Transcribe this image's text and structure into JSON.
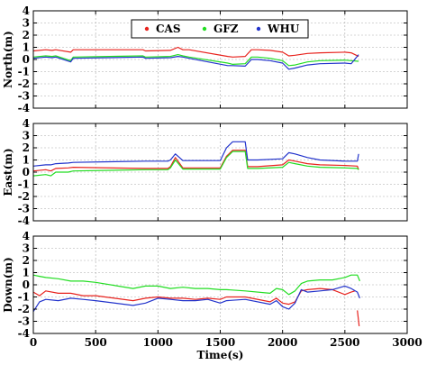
{
  "chart_data": [
    {
      "type": "line",
      "ylabel": "North(m)",
      "xlim": [
        0,
        3000
      ],
      "ylim": [
        -4,
        4
      ],
      "grid": true,
      "legend": {
        "placement": "top-center",
        "entries": [
          "CAS",
          "GFZ",
          "WHU"
        ]
      },
      "series": [
        {
          "name": "CAS",
          "color": "#e8231e",
          "x": [
            0,
            100,
            150,
            180,
            300,
            320,
            880,
            900,
            1100,
            1160,
            1200,
            1250,
            1560,
            1600,
            1700,
            1750,
            1800,
            1900,
            2000,
            2050,
            2100,
            2200,
            2300,
            2500,
            2550,
            2610
          ],
          "y": [
            0.7,
            0.8,
            0.75,
            0.8,
            0.6,
            0.8,
            0.8,
            0.7,
            0.75,
            1.0,
            0.8,
            0.8,
            0.25,
            0.2,
            0.25,
            0.8,
            0.8,
            0.75,
            0.6,
            0.3,
            0.35,
            0.5,
            0.55,
            0.6,
            0.55,
            0.25
          ]
        },
        {
          "name": "GFZ",
          "color": "#22dd22",
          "x": [
            0,
            100,
            150,
            180,
            300,
            320,
            880,
            900,
            1100,
            1160,
            1200,
            1250,
            1560,
            1600,
            1700,
            1750,
            1800,
            1900,
            2000,
            2050,
            2100,
            2200,
            2300,
            2500,
            2550,
            2610
          ],
          "y": [
            0.2,
            0.3,
            0.25,
            0.3,
            -0.1,
            0.2,
            0.3,
            0.2,
            0.25,
            0.4,
            0.3,
            0.2,
            -0.3,
            -0.4,
            -0.35,
            0.2,
            0.2,
            0.1,
            -0.1,
            -0.5,
            -0.45,
            -0.2,
            -0.1,
            -0.05,
            -0.1,
            -0.15
          ]
        },
        {
          "name": "WHU",
          "color": "#2233cc",
          "x": [
            0,
            100,
            150,
            180,
            300,
            320,
            880,
            900,
            1100,
            1160,
            1200,
            1250,
            1560,
            1600,
            1700,
            1750,
            1800,
            1900,
            2000,
            2050,
            2100,
            2200,
            2300,
            2500,
            2550,
            2610
          ],
          "y": [
            0.1,
            0.2,
            0.15,
            0.2,
            -0.2,
            0.1,
            0.2,
            0.1,
            0.15,
            0.25,
            0.2,
            0.1,
            -0.5,
            -0.5,
            -0.55,
            0.0,
            0.0,
            -0.1,
            -0.3,
            -0.8,
            -0.7,
            -0.45,
            -0.35,
            -0.3,
            -0.35,
            0.4
          ]
        }
      ]
    },
    {
      "type": "line",
      "ylabel": "East(m)",
      "xlim": [
        0,
        3000
      ],
      "ylim": [
        -4,
        4
      ],
      "grid": true,
      "series": [
        {
          "name": "CAS",
          "color": "#e8231e",
          "x": [
            0,
            100,
            140,
            180,
            280,
            320,
            900,
            1080,
            1100,
            1140,
            1200,
            1500,
            1550,
            1600,
            1700,
            1720,
            1800,
            2000,
            2050,
            2100,
            2200,
            2300,
            2500,
            2600,
            2610
          ],
          "y": [
            0.1,
            0.2,
            0.1,
            0.3,
            0.35,
            0.4,
            0.3,
            0.3,
            0.45,
            1.2,
            0.35,
            0.35,
            1.3,
            1.8,
            1.8,
            0.45,
            0.45,
            0.6,
            1.0,
            0.9,
            0.7,
            0.6,
            0.55,
            0.5,
            0.2
          ]
        },
        {
          "name": "GFZ",
          "color": "#22dd22",
          "x": [
            0,
            100,
            140,
            180,
            280,
            320,
            900,
            1080,
            1100,
            1140,
            1200,
            1500,
            1550,
            1600,
            1700,
            1720,
            1800,
            2000,
            2050,
            2100,
            2200,
            2300,
            2500,
            2600,
            2610
          ],
          "y": [
            -0.3,
            -0.2,
            -0.3,
            0.0,
            0.0,
            0.1,
            0.2,
            0.2,
            0.35,
            1.0,
            0.25,
            0.25,
            1.2,
            1.7,
            1.7,
            0.3,
            0.3,
            0.4,
            0.8,
            0.7,
            0.5,
            0.4,
            0.35,
            0.3,
            0.2
          ]
        },
        {
          "name": "WHU",
          "color": "#2233cc",
          "x": [
            0,
            100,
            140,
            180,
            280,
            320,
            900,
            1080,
            1100,
            1140,
            1200,
            1500,
            1550,
            1600,
            1700,
            1720,
            1800,
            2000,
            2050,
            2100,
            2200,
            2300,
            2500,
            2600,
            2610
          ],
          "y": [
            0.5,
            0.6,
            0.6,
            0.7,
            0.75,
            0.8,
            0.9,
            0.9,
            1.0,
            1.5,
            0.95,
            0.95,
            2.0,
            2.5,
            2.5,
            1.0,
            1.0,
            1.1,
            1.6,
            1.5,
            1.2,
            1.0,
            0.9,
            0.9,
            1.5
          ]
        }
      ]
    },
    {
      "type": "line",
      "ylabel": "Down(m)",
      "xlabel": "Time(s)",
      "xlim": [
        0,
        3000
      ],
      "ylim": [
        -4,
        4
      ],
      "grid": true,
      "series": [
        {
          "name": "CAS",
          "color": "#e8231e",
          "x": [
            0,
            50,
            100,
            200,
            300,
            400,
            500,
            800,
            900,
            1000,
            1100,
            1200,
            1300,
            1400,
            1500,
            1550,
            1700,
            1900,
            1950,
            2000,
            2050,
            2100,
            2150,
            2200,
            2300,
            2400,
            2500,
            2550,
            2580
          ],
          "y": [
            -0.6,
            -0.9,
            -0.5,
            -0.7,
            -0.7,
            -0.9,
            -0.9,
            -1.3,
            -1.1,
            -1.0,
            -1.1,
            -1.1,
            -1.2,
            -1.1,
            -1.2,
            -1.0,
            -1.0,
            -1.4,
            -1.1,
            -1.5,
            -1.6,
            -1.4,
            -0.5,
            -0.4,
            -0.3,
            -0.4,
            -0.8,
            -0.6,
            -0.5
          ]
        },
        {
          "name": "GFZ",
          "color": "#22dd22",
          "x": [
            0,
            50,
            100,
            200,
            300,
            400,
            500,
            800,
            900,
            1000,
            1100,
            1200,
            1300,
            1400,
            1500,
            1550,
            1700,
            1900,
            1950,
            2000,
            2050,
            2100,
            2150,
            2200,
            2300,
            2400,
            2500,
            2550,
            2600,
            2620
          ],
          "y": [
            0.8,
            0.7,
            0.6,
            0.5,
            0.3,
            0.3,
            0.2,
            -0.3,
            -0.1,
            -0.1,
            -0.3,
            -0.2,
            -0.3,
            -0.3,
            -0.4,
            -0.4,
            -0.5,
            -0.7,
            -0.3,
            -0.4,
            -0.8,
            -0.5,
            0.1,
            0.3,
            0.4,
            0.4,
            0.6,
            0.8,
            0.8,
            0.3
          ]
        },
        {
          "name": "WHU",
          "color": "#2233cc",
          "x": [
            0,
            50,
            100,
            200,
            300,
            400,
            500,
            800,
            900,
            1000,
            1100,
            1200,
            1300,
            1400,
            1500,
            1550,
            1700,
            1900,
            1950,
            2000,
            2050,
            2100,
            2150,
            2200,
            2300,
            2400,
            2500,
            2550,
            2600,
            2620
          ],
          "y": [
            -2.2,
            -1.4,
            -1.2,
            -1.3,
            -1.1,
            -1.2,
            -1.3,
            -1.7,
            -1.5,
            -1.1,
            -1.2,
            -1.3,
            -1.3,
            -1.2,
            -1.5,
            -1.3,
            -1.2,
            -1.6,
            -1.3,
            -1.8,
            -2.0,
            -1.5,
            -0.4,
            -0.6,
            -0.5,
            -0.4,
            -0.1,
            -0.3,
            -0.6,
            -1.1
          ]
        },
        {
          "name": "CAS",
          "color": "#e8231e",
          "x": [
            2600,
            2615
          ],
          "y": [
            -2.1,
            -3.4
          ]
        }
      ],
      "xticks": [
        0,
        500,
        1000,
        1500,
        2000,
        2500,
        3000
      ]
    }
  ],
  "yticks": [
    4,
    3,
    2,
    1,
    0,
    -1,
    -2,
    -3,
    -4
  ],
  "xtick_labels": [
    "0",
    "500",
    "1000",
    "1500",
    "2000",
    "2500",
    "3000"
  ]
}
